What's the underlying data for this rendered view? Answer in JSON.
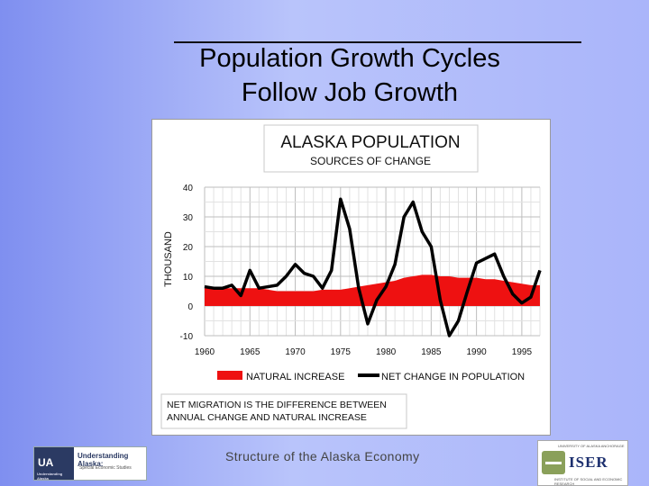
{
  "slide": {
    "title_line1": "Population Growth Cycles",
    "title_line2": "Follow Job Growth",
    "footer": "Structure of the Alaska Economy"
  },
  "logos": {
    "ua": {
      "mark": "UA",
      "tagline": "Understanding Alaska",
      "name": "Understanding Alaska:",
      "sub": "Special Economic Studies"
    },
    "iser": {
      "top": "UNIVERSITY OF ALASKA ANCHORAGE",
      "name": "ISER",
      "bottom": "INSTITUTE OF SOCIAL AND ECONOMIC RESEARCH"
    }
  },
  "chart_data": {
    "type": "line",
    "title": "ALASKA POPULATION",
    "subtitle": "SOURCES OF CHANGE",
    "ylabel": "THOUSAND",
    "xlabel": "",
    "xlim": [
      1960,
      1997
    ],
    "ylim": [
      -10,
      40
    ],
    "x_ticks": [
      1960,
      1965,
      1970,
      1975,
      1980,
      1985,
      1990,
      1995
    ],
    "y_ticks": [
      -10,
      0,
      10,
      20,
      30,
      40
    ],
    "grid": true,
    "legend_position": "bottom",
    "note": "NET MIGRATION IS THE DIFFERENCE BETWEEN ANNUAL CHANGE AND NATURAL INCREASE",
    "colors": {
      "natural_increase": "#ee1111",
      "net_change": "#000000"
    },
    "x": [
      1960,
      1961,
      1962,
      1963,
      1964,
      1965,
      1966,
      1967,
      1968,
      1969,
      1970,
      1971,
      1972,
      1973,
      1974,
      1975,
      1976,
      1977,
      1978,
      1979,
      1980,
      1981,
      1982,
      1983,
      1984,
      1985,
      1986,
      1987,
      1988,
      1989,
      1990,
      1991,
      1992,
      1993,
      1994,
      1995,
      1996,
      1997
    ],
    "series": [
      {
        "name": "NATURAL INCREASE",
        "style": "area",
        "values": [
          6,
          6,
          6,
          6,
          6,
          6,
          6,
          5.5,
          5,
          5,
          5,
          5,
          5,
          5.5,
          5.5,
          5.5,
          6,
          6.5,
          7,
          7.5,
          8,
          8.5,
          9.5,
          10,
          10.5,
          10.5,
          10,
          10,
          9.5,
          9.5,
          9.5,
          9,
          9,
          8.5,
          8,
          7.5,
          7,
          7
        ]
      },
      {
        "name": "NET CHANGE IN POPULATION",
        "style": "line",
        "values": [
          6.5,
          6,
          6,
          7,
          3.5,
          12,
          6,
          6.5,
          7,
          10,
          14,
          11,
          10,
          6,
          12,
          36,
          26,
          6,
          -6,
          2,
          6.5,
          14,
          30,
          35,
          25,
          20,
          2,
          -10,
          -5,
          5,
          14.5,
          16,
          17.5,
          10,
          4,
          1,
          3,
          12
        ]
      }
    ]
  }
}
